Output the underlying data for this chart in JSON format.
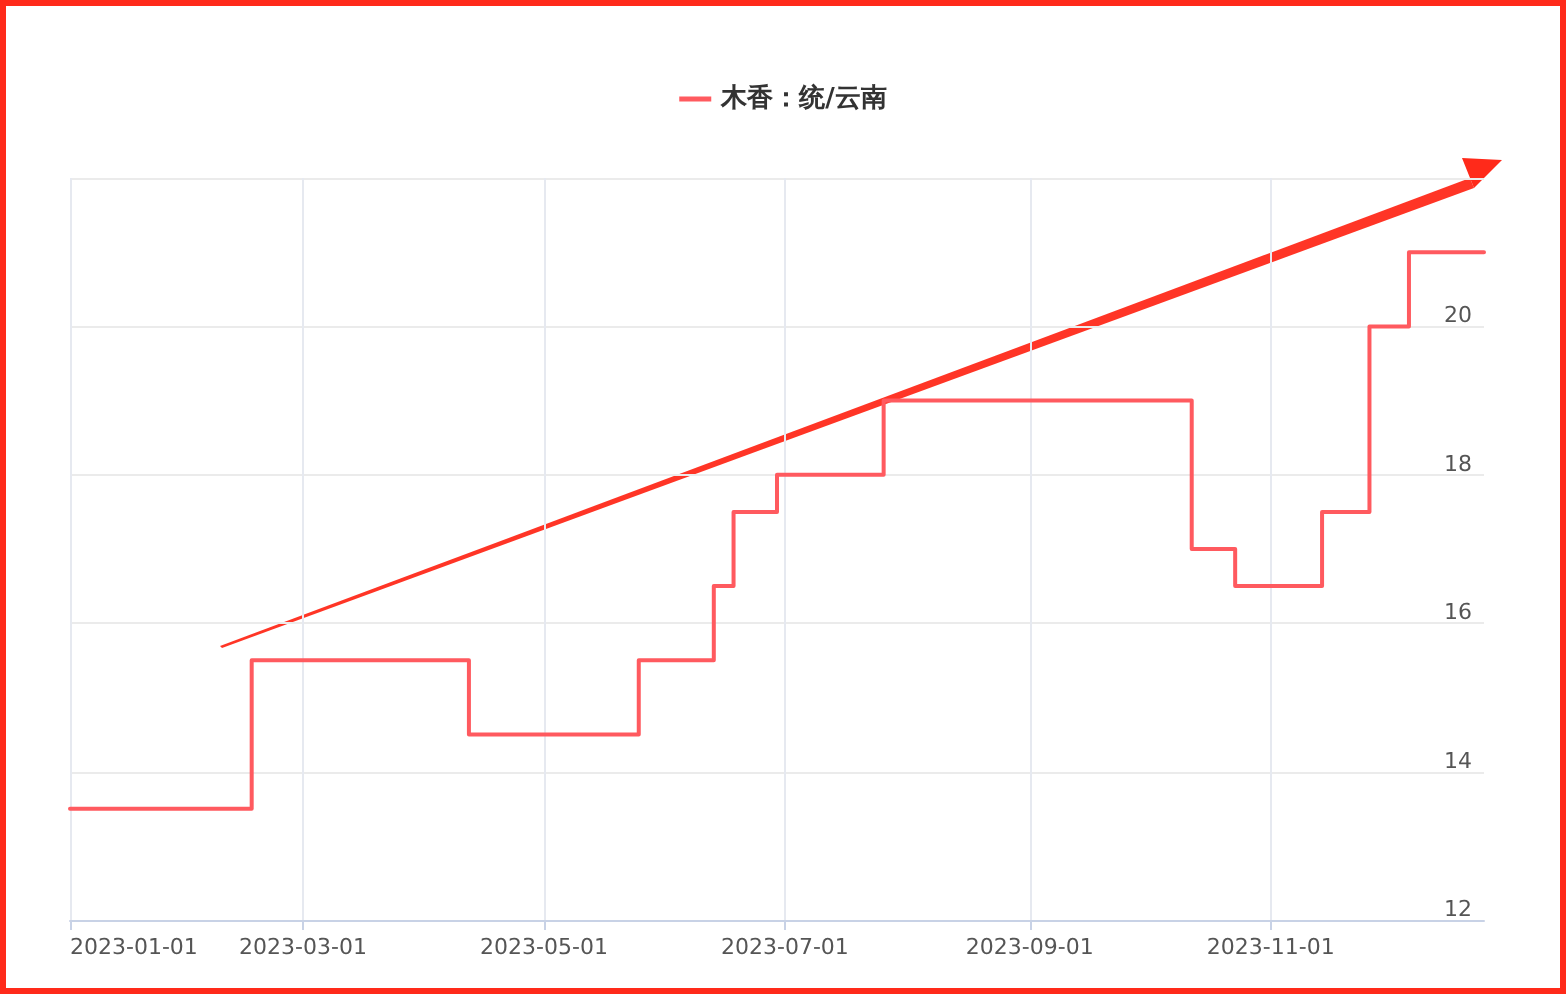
{
  "chart_data": {
    "type": "step",
    "x": [
      "2023-01-01",
      "2023-02-16",
      "2023-04-12",
      "2023-05-25",
      "2023-06-13",
      "2023-06-18",
      "2023-06-29",
      "2023-07-26",
      "2023-10-12",
      "2023-10-23",
      "2023-11-14",
      "2023-11-26",
      "2023-12-06",
      "2023-12-25"
    ],
    "series": [
      {
        "name": "木香：统/云南",
        "color": "#ff5a5f",
        "values": [
          13.5,
          15.5,
          14.5,
          15.5,
          16.5,
          17.5,
          18,
          19,
          17,
          16.5,
          17.5,
          20,
          21,
          21
        ]
      }
    ],
    "xlim": [
      "2023-01-01",
      "2023-12-25"
    ],
    "xticks": [
      "2023-01-01",
      "2023-03-01",
      "2023-05-01",
      "2023-07-01",
      "2023-09-01",
      "2023-11-01"
    ],
    "ylim": [
      12,
      22
    ],
    "yticks": [
      12,
      14,
      16,
      18,
      20,
      {
        "value": 22,
        "label": null
      }
    ],
    "grid": true,
    "legend": "top",
    "line_style": "solid",
    "marker": "none"
  }
}
